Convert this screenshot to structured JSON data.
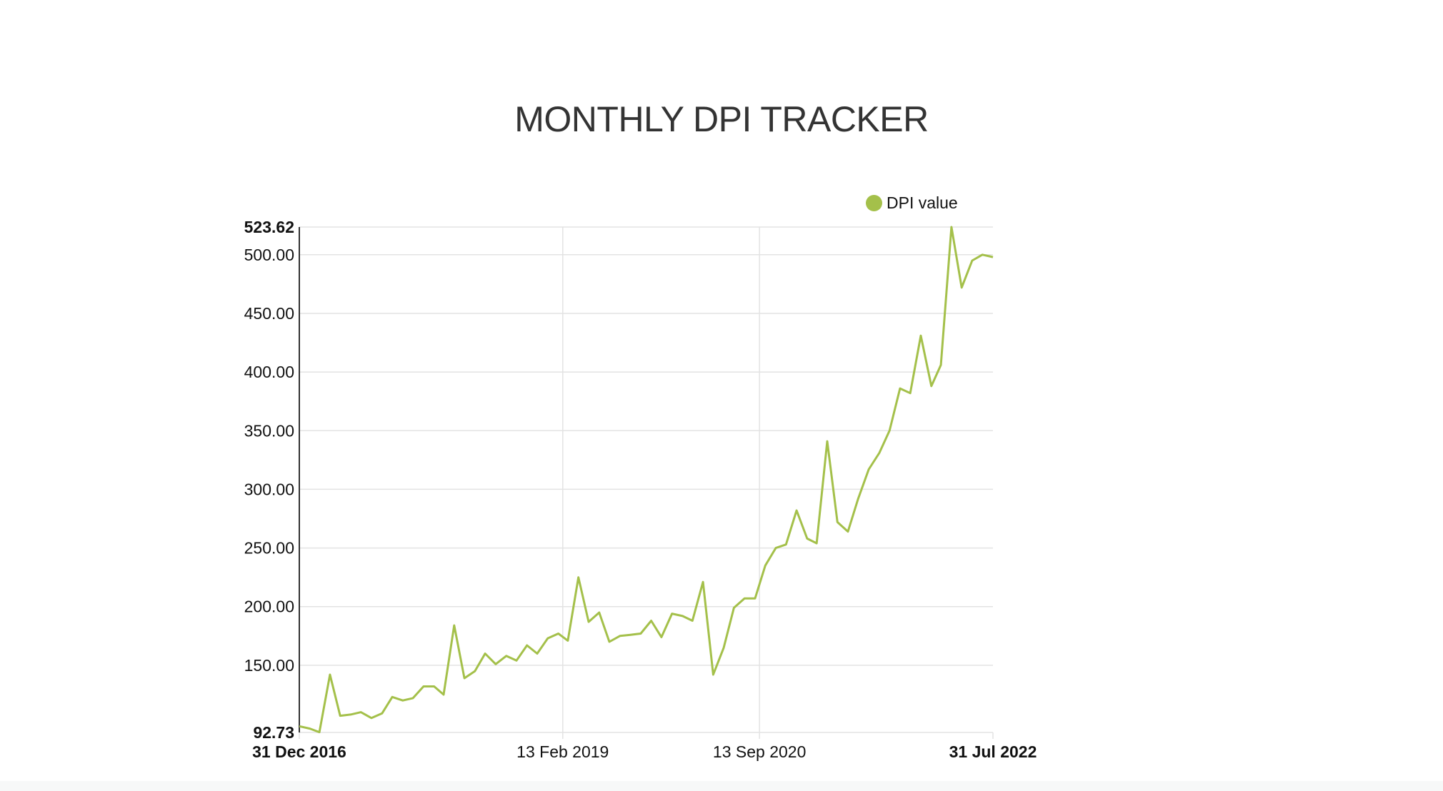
{
  "chart_data": {
    "type": "line",
    "title": "MONTHLY DPI TRACKER",
    "series": [
      {
        "name": "DPI value",
        "color": "#a4c04a",
        "points": [
          [
            "2016-12-31",
            98.0
          ],
          [
            "2017-01-31",
            96.0
          ],
          [
            "2017-02-28",
            93.0
          ],
          [
            "2017-03-31",
            142.0
          ],
          [
            "2017-04-30",
            107.0
          ],
          [
            "2017-05-31",
            108.0
          ],
          [
            "2017-06-30",
            110.0
          ],
          [
            "2017-07-31",
            105.0
          ],
          [
            "2017-08-31",
            109.0
          ],
          [
            "2017-09-30",
            123.0
          ],
          [
            "2017-10-31",
            120.0
          ],
          [
            "2017-11-30",
            122.0
          ],
          [
            "2017-12-31",
            132.0
          ],
          [
            "2018-01-31",
            132.0
          ],
          [
            "2018-02-28",
            125.0
          ],
          [
            "2018-03-31",
            184.0
          ],
          [
            "2018-04-30",
            139.0
          ],
          [
            "2018-05-31",
            145.0
          ],
          [
            "2018-06-30",
            160.0
          ],
          [
            "2018-07-31",
            151.0
          ],
          [
            "2018-08-31",
            158.0
          ],
          [
            "2018-09-30",
            154.0
          ],
          [
            "2018-10-31",
            167.0
          ],
          [
            "2018-11-30",
            160.0
          ],
          [
            "2018-12-31",
            173.0
          ],
          [
            "2019-01-31",
            177.0
          ],
          [
            "2019-02-28",
            171.0
          ],
          [
            "2019-03-31",
            225.0
          ],
          [
            "2019-04-30",
            187.0
          ],
          [
            "2019-05-31",
            195.0
          ],
          [
            "2019-06-30",
            170.0
          ],
          [
            "2019-07-31",
            175.0
          ],
          [
            "2019-08-31",
            176.0
          ],
          [
            "2019-09-30",
            177.0
          ],
          [
            "2019-10-31",
            188.0
          ],
          [
            "2019-11-30",
            174.0
          ],
          [
            "2019-12-31",
            194.0
          ],
          [
            "2020-01-31",
            192.0
          ],
          [
            "2020-02-29",
            188.0
          ],
          [
            "2020-03-31",
            221.0
          ],
          [
            "2020-04-30",
            142.0
          ],
          [
            "2020-05-31",
            165.0
          ],
          [
            "2020-06-30",
            199.0
          ],
          [
            "2020-07-31",
            207.0
          ],
          [
            "2020-08-31",
            207.0
          ],
          [
            "2020-09-30",
            235.0
          ],
          [
            "2020-10-31",
            250.0
          ],
          [
            "2020-11-30",
            253.0
          ],
          [
            "2020-12-31",
            282.0
          ],
          [
            "2021-01-31",
            258.0
          ],
          [
            "2021-02-28",
            254.0
          ],
          [
            "2021-03-31",
            341.0
          ],
          [
            "2021-04-30",
            272.0
          ],
          [
            "2021-05-31",
            264.0
          ],
          [
            "2021-06-30",
            292.0
          ],
          [
            "2021-07-31",
            317.0
          ],
          [
            "2021-08-31",
            331.0
          ],
          [
            "2021-09-30",
            350.0
          ],
          [
            "2021-10-31",
            386.0
          ],
          [
            "2021-11-30",
            382.0
          ],
          [
            "2021-12-31",
            431.0
          ],
          [
            "2022-01-31",
            388.0
          ],
          [
            "2022-02-28",
            406.0
          ],
          [
            "2022-03-31",
            523.62
          ],
          [
            "2022-04-30",
            472.0
          ],
          [
            "2022-05-31",
            495.0
          ],
          [
            "2022-06-30",
            500.0
          ],
          [
            "2022-07-31",
            498.0
          ]
        ]
      }
    ],
    "ylim": [
      92.73,
      523.62
    ],
    "xlim": [
      "2016-12-31",
      "2022-07-31"
    ],
    "y_ticks": [
      "92.73",
      "150.00",
      "200.00",
      "250.00",
      "300.00",
      "350.00",
      "400.00",
      "450.00",
      "500.00",
      "523.62"
    ],
    "y_ticks_bold": [
      "92.73",
      "523.62"
    ],
    "x_ticks": [
      {
        "date": "2016-12-31",
        "label": "31 Dec 2016",
        "bold": true
      },
      {
        "date": "2019-02-13",
        "label": "13 Feb 2019",
        "bold": false
      },
      {
        "date": "2020-09-13",
        "label": "13 Sep 2020",
        "bold": false
      },
      {
        "date": "2022-07-31",
        "label": "31 Jul 2022",
        "bold": true
      }
    ],
    "xlabel": "",
    "ylabel": "",
    "grid": true,
    "legend_position": "top-right"
  },
  "colors": {
    "line": "#a4c04a",
    "grid": "#e3e3e3",
    "axis": "#333333",
    "title": "#333333"
  }
}
